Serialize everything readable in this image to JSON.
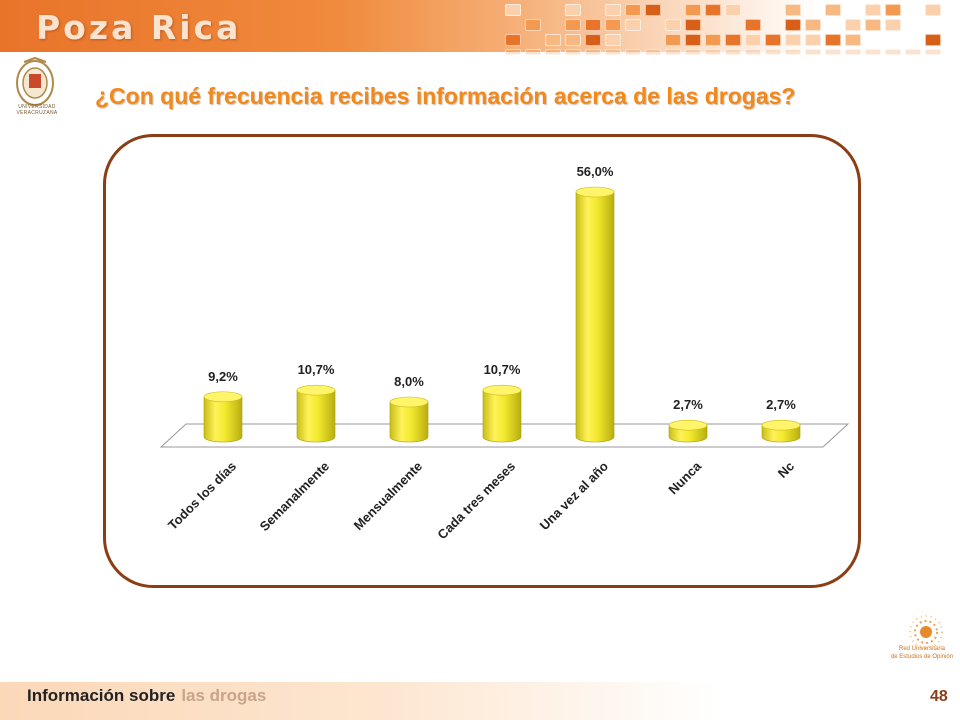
{
  "header": {
    "title": "Poza Rica"
  },
  "university": {
    "name": "UNIVERSIDAD VERACRUZANA"
  },
  "page": {
    "title": "¿Con qué frecuencia recibes información acerca de las drogas?"
  },
  "footer": {
    "section_a": "Información sobre",
    "section_b": "las drogas",
    "page_number": "48"
  },
  "org": {
    "line1": "Red Universitaria",
    "line2": "de Estudios de Opinión"
  },
  "colors": {
    "accent": "#f08a1c",
    "frame": "#8b3e14",
    "bar": "#f2ea2e",
    "bar_dark": "#c9be16"
  },
  "chart_data": {
    "type": "bar",
    "categories": [
      "Todos los días",
      "Semanalmente",
      "Mensualmente",
      "Cada tres meses",
      "Una vez al año",
      "Nunca",
      "Nc"
    ],
    "values": [
      9.2,
      10.7,
      8.0,
      10.7,
      56.0,
      2.7,
      2.7
    ],
    "data_labels": [
      "9,2%",
      "10,7%",
      "8,0%",
      "10,7%",
      "56,0%",
      "2,7%",
      "2,7%"
    ],
    "unit": "%",
    "grid": false,
    "legend": "none"
  }
}
